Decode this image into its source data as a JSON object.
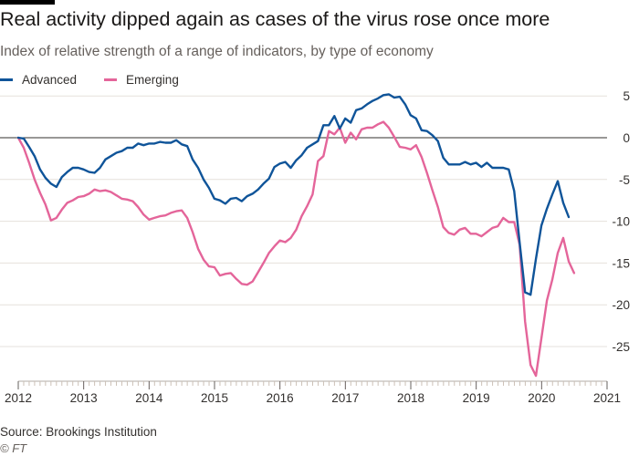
{
  "header": {
    "title": "Real activity dipped again as cases of the virus rose once more",
    "subtitle": "Index of relative strength of a range of indicators, by type of economy"
  },
  "footer": {
    "source": "Source: Brookings Institution",
    "credit": "© FT"
  },
  "colors": {
    "advanced": "#0f5499",
    "emerging": "#e4659a",
    "grid": "#e6e1dc",
    "zero_line": "#33302e"
  },
  "chart_data": {
    "type": "line",
    "title": "Real activity dipped again as cases of the virus rose once more",
    "subtitle": "Index of relative strength of a range of indicators, by type of economy",
    "xlabel": "",
    "ylabel": "",
    "x_start": 2012.0,
    "x_step": 0.0833,
    "xlim": [
      2012,
      2021.1
    ],
    "ylim": [
      -29.5,
      6.5
    ],
    "y_ticks": [
      5,
      0,
      -5,
      -10,
      -15,
      -20,
      -25
    ],
    "y_tick_labels": [
      "5",
      "0",
      "-5",
      "-10",
      "-15",
      "-20",
      "-25"
    ],
    "x_ticks": [
      2012,
      2013,
      2014,
      2015,
      2016,
      2017,
      2018,
      2019,
      2020,
      2021
    ],
    "x_tick_labels": [
      "2012",
      "2013",
      "2014",
      "2015",
      "2016",
      "2017",
      "2018",
      "2019",
      "2020",
      "2021"
    ],
    "grid": true,
    "legend_position": "top-left",
    "series": [
      {
        "name": "Advanced",
        "color": "#0f5499",
        "values": [
          0,
          -0.1,
          -1.1,
          -2.2,
          -3.8,
          -4.8,
          -5.5,
          -5.9,
          -4.7,
          -4.1,
          -3.6,
          -3.6,
          -3.8,
          -4.1,
          -4.2,
          -3.6,
          -2.6,
          -2.2,
          -1.8,
          -1.6,
          -1.2,
          -1.2,
          -0.7,
          -0.9,
          -0.7,
          -0.7,
          -0.5,
          -0.6,
          -0.6,
          -0.3,
          -0.8,
          -1.0,
          -2.6,
          -3.6,
          -5.0,
          -6.0,
          -7.3,
          -7.5,
          -7.9,
          -7.3,
          -7.2,
          -7.6,
          -7.0,
          -6.7,
          -6.2,
          -5.5,
          -4.9,
          -3.5,
          -3.1,
          -2.9,
          -3.6,
          -2.7,
          -2.1,
          -1.2,
          -0.8,
          -0.4,
          1.5,
          1.5,
          2.6,
          1.1,
          2.3,
          1.8,
          3.3,
          3.5,
          4.0,
          4.4,
          4.7,
          5.1,
          5.2,
          4.8,
          4.9,
          4.0,
          2.7,
          2.3,
          0.9,
          0.8,
          0.3,
          -0.4,
          -2.4,
          -3.2,
          -3.2,
          -3.2,
          -2.9,
          -3.2,
          -3.0,
          -3.5,
          -3.0,
          -3.6,
          -3.6,
          -3.6,
          -3.8,
          -6.4,
          -12.5,
          -18.5,
          -18.8,
          -14.5,
          -10.5,
          -8.5,
          -6.8,
          -5.2,
          -7.8,
          -9.5
        ]
      },
      {
        "name": "Emerging",
        "color": "#e4659a",
        "values": [
          0,
          -1.2,
          -3.0,
          -5.0,
          -6.6,
          -8.0,
          -9.9,
          -9.6,
          -8.6,
          -7.8,
          -7.5,
          -7.1,
          -7.0,
          -6.7,
          -6.2,
          -6.4,
          -6.3,
          -6.5,
          -6.9,
          -7.3,
          -7.4,
          -7.6,
          -8.3,
          -9.2,
          -9.8,
          -9.6,
          -9.4,
          -9.3,
          -9.0,
          -8.8,
          -8.7,
          -9.6,
          -11.3,
          -13.3,
          -14.6,
          -15.4,
          -15.5,
          -16.5,
          -16.3,
          -16.2,
          -16.9,
          -17.5,
          -17.6,
          -17.2,
          -16.1,
          -15.0,
          -13.8,
          -13.0,
          -12.3,
          -12.5,
          -12.0,
          -11.0,
          -9.4,
          -8.2,
          -6.8,
          -2.8,
          -2.2,
          0.8,
          0.4,
          1.2,
          -0.6,
          0.6,
          -0.2,
          1.0,
          1.2,
          1.2,
          1.6,
          1.9,
          1.2,
          0.1,
          -1.1,
          -1.2,
          -1.4,
          -0.9,
          -2.3,
          -4.2,
          -6.3,
          -8.3,
          -10.7,
          -11.4,
          -11.6,
          -11.0,
          -10.8,
          -11.5,
          -11.5,
          -11.8,
          -11.3,
          -10.8,
          -10.6,
          -9.6,
          -10.1,
          -10.1,
          -12.8,
          -22.0,
          -27.2,
          -28.5,
          -24.0,
          -19.5,
          -17.0,
          -13.8,
          -12.0,
          -14.8,
          -16.2
        ]
      }
    ]
  }
}
